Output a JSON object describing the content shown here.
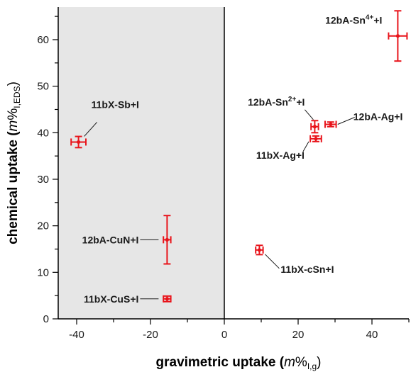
{
  "chart_data": {
    "type": "scatter",
    "xlabel": "gravimetric uptake (m%I,g)",
    "xlabel_parts": {
      "main": "gravimetric uptake (",
      "italic": "m",
      "pct": "%",
      "sub": "I,g",
      "close": ")"
    },
    "ylabel": "chemical uptake (m%I,EDS)",
    "ylabel_parts": {
      "main": "chemical uptake (",
      "italic": "m",
      "pct": "%",
      "sub": "I,EDS",
      "close": ")"
    },
    "xlim": [
      -45,
      50
    ],
    "ylim": [
      0,
      67
    ],
    "x_ticks": [
      -40,
      -20,
      0,
      20,
      40
    ],
    "y_ticks": [
      0,
      10,
      20,
      30,
      40,
      50,
      60
    ],
    "shaded_region": {
      "x_from": -45,
      "x_to": 0,
      "color": "#e6e6e6"
    },
    "vertical_line_x": 0,
    "series_color": "#e8141b",
    "points": [
      {
        "label": "11bX-Sb+I",
        "x": -39.5,
        "y": 38.0,
        "x_err": 2.0,
        "y_err": 1.2
      },
      {
        "label": "12bA-CuN+I",
        "x": -15.5,
        "y": 17.0,
        "x_err": 1.0,
        "y_err": 5.2
      },
      {
        "label": "11bX-CuS+I",
        "x": -15.5,
        "y": 4.3,
        "x_err": 1.0,
        "y_err": 0.6
      },
      {
        "label": "12bA-Sn4++I",
        "label_parts": [
          "12bA-Sn",
          "4+",
          "+I"
        ],
        "x": 47.0,
        "y": 60.8,
        "x_err": 2.5,
        "y_err": 5.4
      },
      {
        "label": "12bA-Sn2++I",
        "label_parts": [
          "12bA-Sn",
          "2+",
          "+I"
        ],
        "x": 24.5,
        "y": 41.3,
        "x_err": 1.0,
        "y_err": 1.3
      },
      {
        "label": "12bA-Ag+I",
        "x": 28.8,
        "y": 41.8,
        "x_err": 1.5,
        "y_err": 0.5
      },
      {
        "label": "11bX-Ag+I",
        "x": 24.8,
        "y": 38.7,
        "x_err": 1.5,
        "y_err": 0.6
      },
      {
        "label": "11bX-cSn+I",
        "x": 9.5,
        "y": 14.8,
        "x_err": 1.0,
        "y_err": 1.0
      }
    ]
  }
}
